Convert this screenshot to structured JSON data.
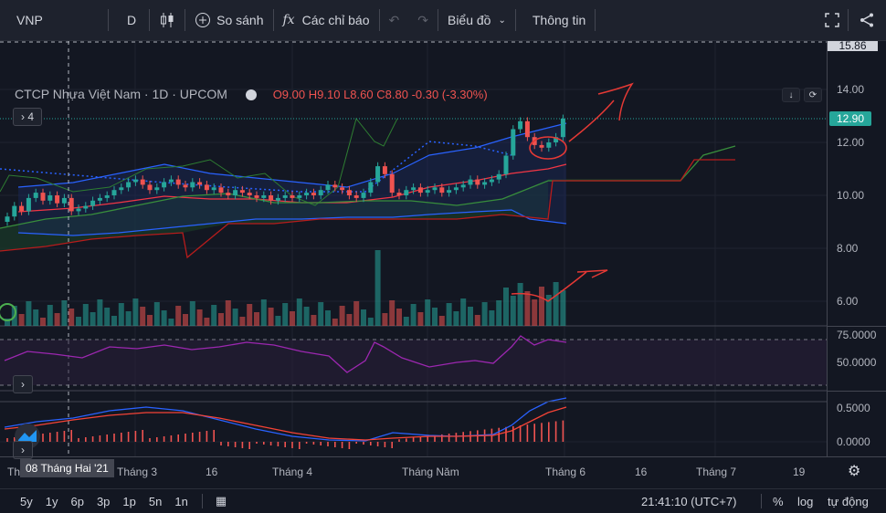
{
  "toolbar": {
    "symbol": "VNP",
    "interval": "D",
    "compare": "So sánh",
    "indicators": "Các chỉ báo",
    "chart_type": "Biểu đồ",
    "info": "Thông tin"
  },
  "legend": {
    "title": "CTCP Nhựa Việt Nam · 1D · UPCOM",
    "open": "O9.00",
    "high": "H9.10",
    "low": "L8.60",
    "close": "C8.80",
    "change": "-0.30 (-3.30%)",
    "collapsed_count": "4"
  },
  "price_axis": {
    "labels": [
      "14.00",
      "12.00",
      "10.00",
      "8.00",
      "6.00"
    ],
    "top_cut": "15.86",
    "last_price": "12.90",
    "last_color": "#26a69a"
  },
  "rsi_axis": {
    "labels": [
      "75.0000",
      "50.0000"
    ]
  },
  "macd_axis": {
    "labels": [
      "0.5000",
      "0.0000"
    ]
  },
  "time_axis": {
    "labels": [
      "Tháng 3",
      "16",
      "Tháng 4",
      "Tháng Năm",
      "Tháng 6",
      "16",
      "Tháng 7",
      "19"
    ],
    "left_cut": "Th",
    "selected": "08 Tháng Hai '21"
  },
  "bottom": {
    "ranges": [
      "5y",
      "1y",
      "6p",
      "3p",
      "1p",
      "5n",
      "1n"
    ],
    "clock": "21:41:10 (UTC+7)",
    "percent": "%",
    "log": "log",
    "auto": "tự động"
  },
  "colors": {
    "up": "#26a69a",
    "down": "#ef5350",
    "bg": "#131722",
    "annotation": "#e53935"
  }
}
